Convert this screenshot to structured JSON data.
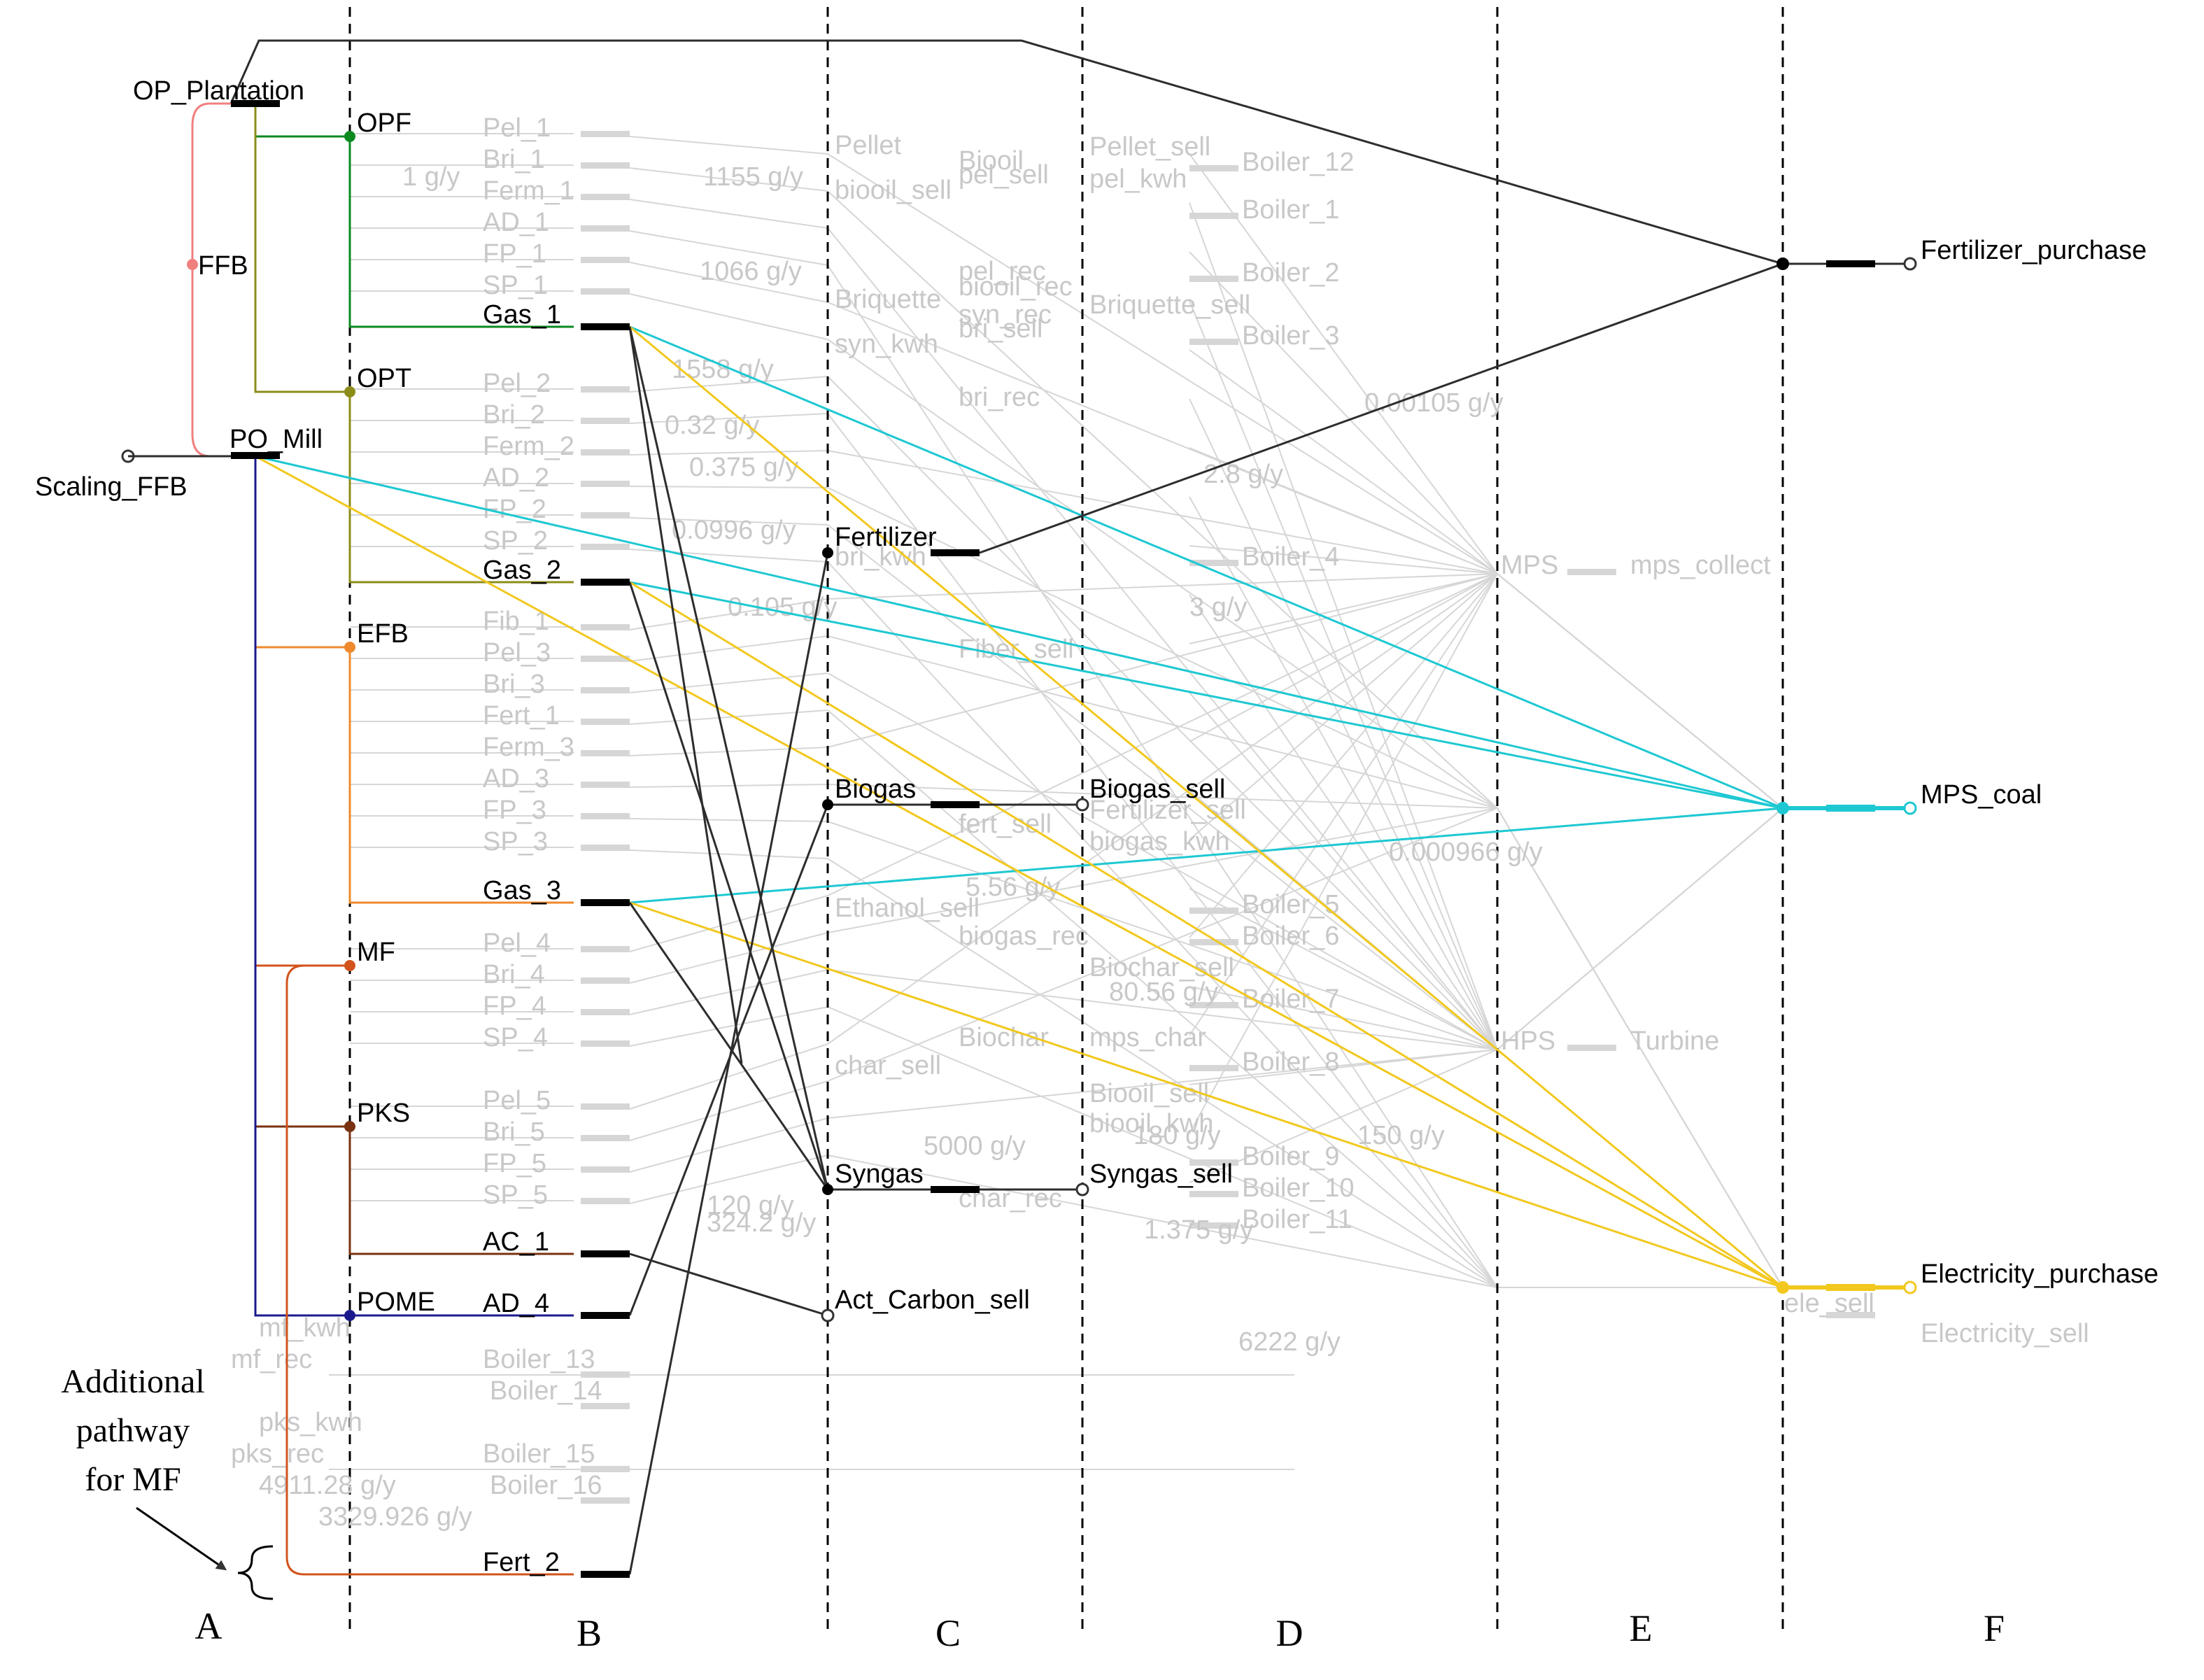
{
  "diagram": {
    "section_labels": [
      "A",
      "B",
      "C",
      "D",
      "E",
      "F"
    ],
    "annotation": [
      "Additional",
      "pathway",
      "for MF"
    ],
    "sources": {
      "op_plantation": "OP_Plantation",
      "ffb": "FFB",
      "scaling_ffb": "Scaling_FFB",
      "po_mill": "PO_Mill"
    },
    "biomass": [
      "OPF",
      "OPT",
      "EFB",
      "MF",
      "PKS",
      "POME"
    ],
    "active_processes": [
      "Gas_1",
      "Gas_2",
      "Gas_3",
      "AC_1",
      "AD_4",
      "Fert_2"
    ],
    "products": [
      "Fertilizer",
      "Biogas",
      "Syngas",
      "Act_Carbon_sell"
    ],
    "sales": [
      "Biogas_sell",
      "Syngas_sell"
    ],
    "outputs": [
      "Fertilizer_purchase",
      "MPS_coal",
      "Electricity_purchase"
    ],
    "inactive_processes": [
      "Pel_1",
      "Bri_1",
      "Ferm_1",
      "AD_1",
      "FP_1",
      "SP_1",
      "Pel_2",
      "Bri_2",
      "Ferm_2",
      "AD_2",
      "FP_2",
      "SP_2",
      "Fib_1",
      "Pel_3",
      "Bri_3",
      "Fert_1",
      "Ferm_3",
      "AD_3",
      "FP_3",
      "SP_3",
      "Pel_4",
      "Bri_4",
      "FP_4",
      "SP_4",
      "Pel_5",
      "Bri_5",
      "FP_5",
      "SP_5"
    ],
    "inactive_products": [
      "Pellet",
      "pel_sell",
      "pel_rec",
      "Briquette",
      "bri_sell",
      "bri_rec",
      "bri_kwh",
      "Fiber_sell",
      "fert_sell",
      "Ethanol_sell",
      "biogas_rec",
      "Biochar",
      "char_sell",
      "char_rec",
      "Biooil",
      "biooil_sell",
      "biooil_rec",
      "syn_rec",
      "syn_kwh"
    ],
    "inactive_d": [
      "Pellet_sell",
      "pel_kwh",
      "Boiler_1",
      "Boiler_2",
      "Briquette_sell",
      "Boiler_3",
      "Boiler_4",
      "Fertilizer_sell",
      "biogas_kwh",
      "Boiler_5",
      "Boiler_6",
      "Biochar_sell",
      "Boiler_7",
      "mps_char",
      "Boiler_8",
      "Biooil_sell",
      "biooil_kwh",
      "Boiler_9",
      "Boiler_10",
      "Boiler_11",
      "Boiler_12"
    ],
    "inactive_e": [
      "MPS",
      "mps_collect",
      "HPS",
      "Turbine"
    ],
    "inactive_f": [
      "ele_sell",
      "Electricity_sell"
    ],
    "inactive_bottom": [
      "mf_kwh",
      "mf_rec",
      "Boiler_13",
      "Boiler_14",
      "pks_kwh",
      "pks_rec",
      "Boiler_15",
      "Boiler_16"
    ],
    "flow_labels": [
      "1 g/y",
      "1155 g/y",
      "1066 g/y",
      "1558 g/y",
      "0.32 g/y",
      "0.375 g/y",
      "0.0996 g/y",
      "0.105 g/y",
      "0.00105 g/y",
      "0.000966 g/y",
      "2.8 g/y",
      "3 g/y",
      "5.56 g/y",
      "80.56 g/y",
      "5000 g/y",
      "180 g/y",
      "150 g/y",
      "120 g/y",
      "324.2 g/y",
      "1.375 g/y",
      "6222 g/y",
      "4911.28 g/y",
      "3329.926 g/y"
    ]
  },
  "colors": {
    "ffb": "#f08080",
    "opf": "#0b8a1f",
    "opt": "#8c8c1a",
    "efb": "#ef8a2c",
    "mf": "#d2541c",
    "pks": "#7a3210",
    "pome": "#1a1a8c",
    "coal": "#1ec8d2",
    "elec": "#f2c81e",
    "dark": "#2d2d2d",
    "inactive": "#d6d6d6"
  }
}
